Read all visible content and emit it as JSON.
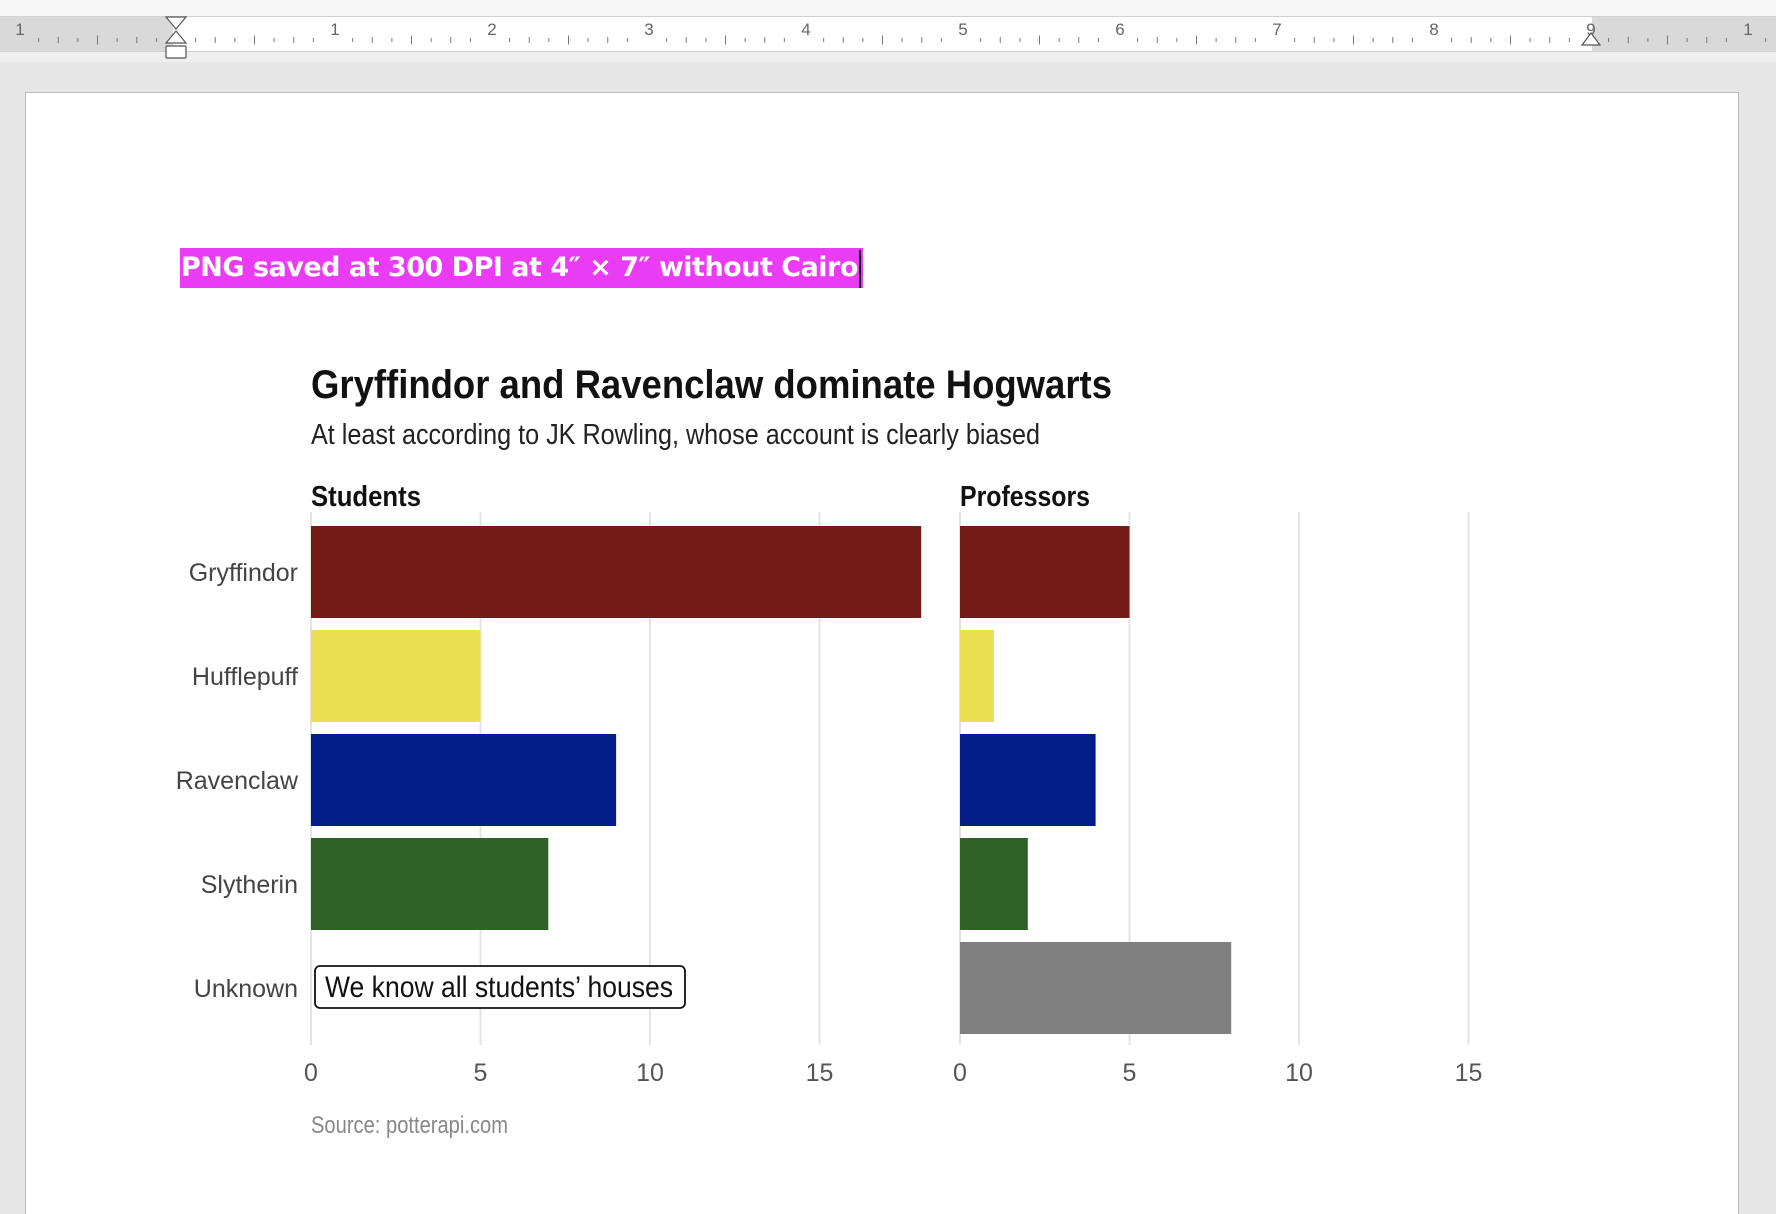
{
  "ruler": {
    "numbers": [
      "1",
      "1",
      "2",
      "3",
      "4",
      "5",
      "6",
      "7",
      "8",
      "9",
      "1"
    ]
  },
  "document": {
    "highlight_text": "PNG saved at 300 DPI at 4″ × 7″ without Cairo",
    "highlight_color": "#ea3cf5"
  },
  "chart_data": {
    "type": "bar",
    "title": "Gryffindor and Ravenclaw dominate Hogwarts",
    "subtitle": "At least according to JK Rowling, whose account is clearly biased",
    "source": "Source: potterapi.com",
    "categories": [
      "Gryffindor",
      "Hufflepuff",
      "Ravenclaw",
      "Slytherin",
      "Unknown"
    ],
    "colors": [
      "#741b17",
      "#ebe051",
      "#001d8a",
      "#2f6127",
      "#808080"
    ],
    "panels": [
      {
        "name": "Students",
        "values": [
          18,
          5,
          9,
          7,
          0
        ],
        "xlim": [
          0,
          18
        ],
        "ticks": [
          "0",
          "5",
          "10",
          "15"
        ],
        "annotation": "We know all students’ houses"
      },
      {
        "name": "Professors",
        "values": [
          5,
          1,
          4,
          2,
          8
        ],
        "xlim": [
          0,
          18
        ],
        "ticks": [
          "0",
          "5",
          "10",
          "15"
        ]
      }
    ],
    "grid": "vertical"
  }
}
